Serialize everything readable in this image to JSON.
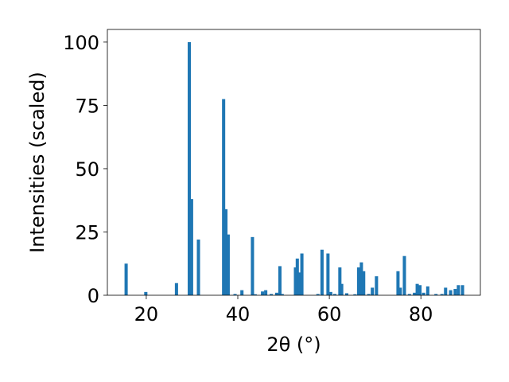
{
  "chart_data": {
    "type": "bar",
    "xlabel": "2θ (°)",
    "ylabel": "Intensities (scaled)",
    "xlim": [
      11.5,
      93.0
    ],
    "ylim": [
      0,
      105
    ],
    "xticks": [
      20,
      40,
      60,
      80
    ],
    "yticks": [
      0,
      25,
      50,
      75,
      100
    ],
    "grid": false,
    "bar_color": "#1f77b4",
    "bar_width": 0.7,
    "x": [
      15.6,
      19.9,
      26.6,
      29.4,
      29.9,
      31.4,
      36.9,
      37.4,
      37.9,
      39.4,
      40.9,
      43.2,
      43.8,
      45.4,
      46.1,
      47.3,
      48.5,
      49.2,
      49.7,
      52.6,
      53.0,
      53.5,
      54.0,
      57.5,
      58.4,
      59.7,
      60.3,
      61.2,
      62.3,
      62.7,
      63.8,
      65.6,
      66.4,
      67.0,
      67.5,
      68.6,
      69.4,
      70.3,
      75.0,
      75.5,
      76.4,
      77.5,
      78.6,
      79.2,
      79.8,
      80.6,
      81.5,
      83.3,
      84.6,
      85.4,
      86.5,
      87.5,
      88.2,
      89.1
    ],
    "values": [
      12.5,
      1.3,
      4.8,
      100,
      38,
      22,
      77.5,
      34,
      24,
      0.5,
      2,
      23,
      0.4,
      1.5,
      2,
      0.5,
      1,
      11.5,
      0.5,
      11,
      14.5,
      9,
      16.5,
      0.5,
      18,
      16.5,
      1.3,
      0.5,
      11,
      4.5,
      0.8,
      0.4,
      11,
      13,
      9.5,
      0.5,
      3,
      7.5,
      9.5,
      3,
      15.5,
      0.5,
      1,
      4.5,
      4,
      1,
      3.5,
      0.5,
      0.5,
      3,
      2,
      2.5,
      4,
      4
    ]
  }
}
